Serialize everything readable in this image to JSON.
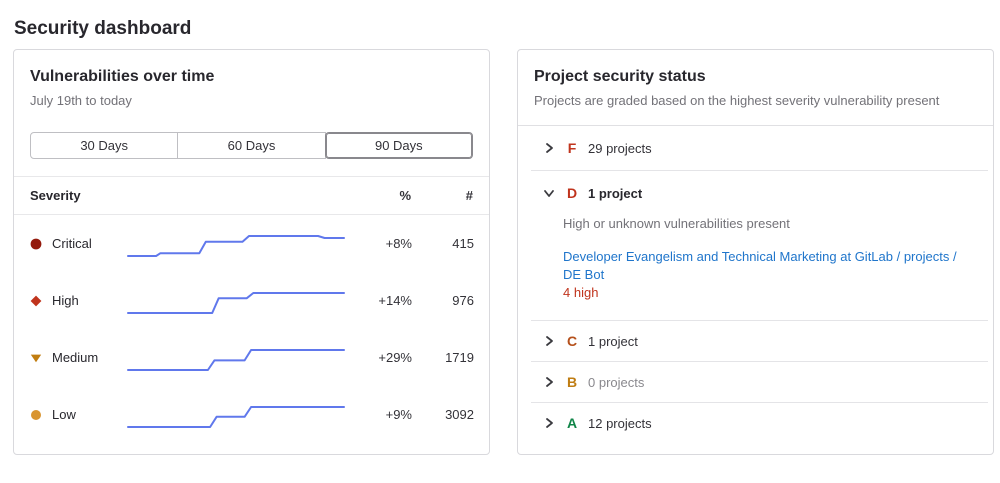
{
  "page": {
    "title": "Security dashboard"
  },
  "vulnerabilities_card": {
    "title": "Vulnerabilities over time",
    "subtitle": "July 19th to today",
    "sparkline_color": "#6078ec",
    "range_buttons": [
      {
        "label": "30 Days",
        "selected": false
      },
      {
        "label": "60 Days",
        "selected": false
      },
      {
        "label": "90 Days",
        "selected": true
      }
    ],
    "table": {
      "columns": [
        "Severity",
        "%",
        "#"
      ],
      "rows": [
        {
          "severity": "Critical",
          "icon": "severity-critical-icon",
          "color": "#941a0c",
          "percent_change": "+8%",
          "count": "415",
          "trend": [
            [
              0,
              0
            ],
            [
              13,
              0
            ],
            [
              15,
              14
            ],
            [
              33,
              14
            ],
            [
              36,
              71
            ],
            [
              53,
              71
            ],
            [
              56,
              100
            ],
            [
              88,
              100
            ],
            [
              91,
              90
            ],
            [
              100,
              90
            ]
          ]
        },
        {
          "severity": "High",
          "icon": "severity-high-icon",
          "color": "#c0341d",
          "percent_change": "+14%",
          "count": "976",
          "trend": [
            [
              0,
              0
            ],
            [
              39,
              0
            ],
            [
              42,
              74
            ],
            [
              55,
              74
            ],
            [
              58,
              100
            ],
            [
              100,
              100
            ]
          ]
        },
        {
          "severity": "Medium",
          "icon": "severity-medium-icon",
          "color": "#c17d10",
          "percent_change": "+29%",
          "count": "1719",
          "trend": [
            [
              0,
              0
            ],
            [
              37,
              0
            ],
            [
              40,
              48
            ],
            [
              54,
              48
            ],
            [
              57,
              100
            ],
            [
              100,
              100
            ]
          ]
        },
        {
          "severity": "Low",
          "icon": "severity-low-icon",
          "color": "#d99530",
          "percent_change": "+9%",
          "count": "3092",
          "trend": [
            [
              0,
              0
            ],
            [
              38,
              0
            ],
            [
              41,
              51
            ],
            [
              54,
              51
            ],
            [
              57,
              100
            ],
            [
              100,
              100
            ]
          ]
        }
      ]
    }
  },
  "status_card": {
    "title": "Project security status",
    "subtitle": "Projects are graded based on the highest severity vulnerability present",
    "grades": [
      {
        "grade": "F",
        "color": "#c0341d",
        "count_label": "29 projects",
        "expanded": false
      },
      {
        "grade": "D",
        "color": "#c0341d",
        "count_label": "1 project",
        "expanded": true,
        "description": "High or unknown vulnerabilities present",
        "project_link": "Developer Evangelism and Technical Marketing at GitLab / projects / DE Bot",
        "finding": "4 high"
      },
      {
        "grade": "C",
        "color": "#b5501b",
        "count_label": "1 project",
        "expanded": false
      },
      {
        "grade": "B",
        "color": "#bf7d13",
        "count_label": "0 projects",
        "expanded": false
      },
      {
        "grade": "A",
        "color": "#108548",
        "count_label": "12 projects",
        "expanded": false
      }
    ]
  }
}
